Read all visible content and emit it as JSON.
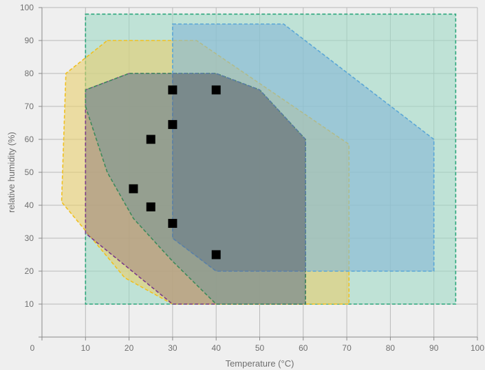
{
  "chart_data": {
    "type": "area",
    "xlabel": "Temperature (°C)",
    "ylabel": "relative humidity (%)",
    "xlim": [
      0,
      100
    ],
    "ylim": [
      0,
      100
    ],
    "xticks": [
      0,
      10,
      20,
      30,
      40,
      50,
      60,
      70,
      80,
      90,
      100
    ],
    "yticks": [
      0,
      10,
      20,
      30,
      40,
      50,
      60,
      70,
      80,
      90,
      100
    ],
    "grid": true,
    "regions": [
      {
        "fill": "#9fd8c4",
        "stroke": "#2aa57a",
        "points": [
          [
            10,
            98
          ],
          [
            95,
            98
          ],
          [
            95,
            10
          ],
          [
            10,
            10
          ]
        ]
      },
      {
        "fill": "#e8cf6e",
        "stroke": "#f0c020",
        "points": [
          [
            15,
            90
          ],
          [
            35.5,
            90
          ],
          [
            70.5,
            58.5
          ],
          [
            70.5,
            10
          ],
          [
            30,
            10
          ],
          [
            19,
            18
          ],
          [
            4.5,
            41
          ],
          [
            5.5,
            80
          ]
        ]
      },
      {
        "fill": "#86b8d6",
        "stroke": "#5aa6d6",
        "points": [
          [
            30,
            95
          ],
          [
            55.5,
            95
          ],
          [
            90,
            60
          ],
          [
            90,
            20
          ],
          [
            40,
            20
          ],
          [
            30,
            30
          ]
        ]
      },
      {
        "fill": "#a98a80",
        "stroke": "#7a3a8a",
        "points": [
          [
            20,
            80
          ],
          [
            40,
            80
          ],
          [
            50,
            75
          ],
          [
            60.5,
            60
          ],
          [
            60.5,
            10
          ],
          [
            30,
            10
          ],
          [
            10,
            31.5
          ],
          [
            10,
            75
          ]
        ]
      },
      {
        "fill": "#7b9a94",
        "stroke": "#3d8a5a",
        "points": [
          [
            10,
            70
          ],
          [
            15,
            50
          ],
          [
            21,
            36
          ],
          [
            30,
            23
          ],
          [
            40,
            10
          ],
          [
            60.5,
            10
          ],
          [
            60.5,
            60
          ],
          [
            50,
            75
          ],
          [
            40,
            80
          ],
          [
            20,
            80
          ],
          [
            10,
            75
          ]
        ]
      },
      {
        "fill": "#6e7f86",
        "stroke": "#5a7fa6",
        "points": [
          [
            30,
            80
          ],
          [
            40,
            80
          ],
          [
            50,
            75
          ],
          [
            60.5,
            60
          ],
          [
            60.5,
            20
          ],
          [
            40,
            20
          ],
          [
            30,
            30
          ]
        ]
      }
    ],
    "points": [
      [
        30,
        75
      ],
      [
        40,
        75
      ],
      [
        30,
        64.5
      ],
      [
        25,
        60
      ],
      [
        21,
        45
      ],
      [
        25,
        39.5
      ],
      [
        30,
        34.5
      ],
      [
        40,
        25
      ]
    ]
  }
}
